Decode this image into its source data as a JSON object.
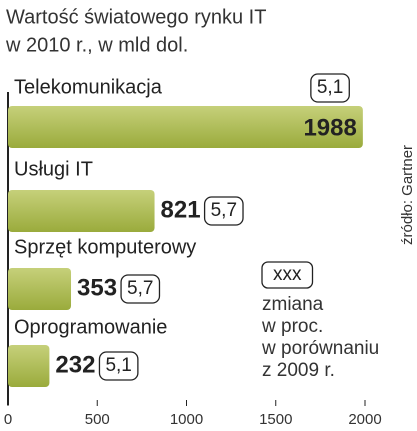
{
  "chart_data": {
    "type": "bar",
    "orientation": "horizontal",
    "title": [
      "Wartość światowego rynku IT",
      "w 2010 r., w mld dol."
    ],
    "categories": [
      "Telekomunikacja",
      "Usługi IT",
      "Sprzęt komputerowy",
      "Oprogramowanie"
    ],
    "values": [
      1988,
      821,
      353,
      232
    ],
    "change_values": [
      5.1,
      5.7,
      5.7,
      5.1
    ],
    "change_labels": [
      "5,1",
      "5,7",
      "5,7",
      "5,1"
    ],
    "color": "#a9b84c",
    "xlim": [
      0,
      2000
    ],
    "xticks": [
      0,
      500,
      1000,
      1500,
      2000
    ],
    "legend": {
      "box": "xxx",
      "lines": [
        "zmiana",
        "w proc.",
        "w porównaniu",
        "z 2009 r."
      ]
    },
    "source": "źródło: Gartner"
  }
}
